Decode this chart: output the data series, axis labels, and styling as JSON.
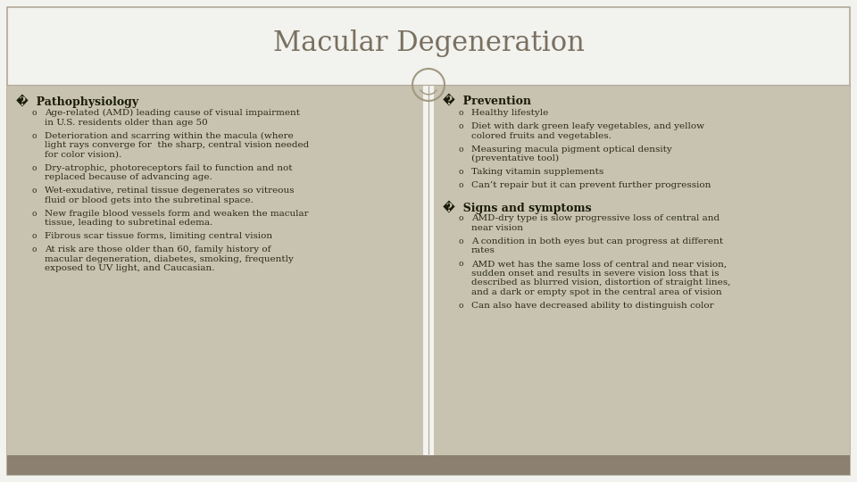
{
  "title": "Macular Degeneration",
  "title_color": "#7a7060",
  "title_fontsize": 22,
  "bg_color": "#f2f2ee",
  "content_bg": "#c8c3b0",
  "footer_color": "#8c8070",
  "border_color": "#b0a898",
  "left_heading": "�  Pathophysiology",
  "left_bullets": [
    [
      "Age-related (AMD) leading cause of visual impairment",
      "in U.S. residents older than age 50"
    ],
    [
      "Deterioration and scarring within the macula (where",
      "light rays converge for  the sharp, central vision needed",
      "for color vision)."
    ],
    [
      "Dry-atrophic, photoreceptors fail to function and not",
      "replaced because of advancing age."
    ],
    [
      "Wet-exudative, retinal tissue degenerates so vitreous",
      "fluid or blood gets into the subretinal space."
    ],
    [
      "New fragile blood vessels form and weaken the macular",
      "tissue, leading to subretinal edema."
    ],
    [
      "Fibrous scar tissue forms, limiting central vision"
    ],
    [
      "At risk are those older than 60, family history of",
      "macular degeneration, diabetes, smoking, frequently",
      "exposed to UV light, and Caucasian."
    ]
  ],
  "right_heading1": "�  Prevention",
  "right_bullets1": [
    [
      "Healthy lifestyle"
    ],
    [
      "Diet with dark green leafy vegetables, and yellow",
      "colored fruits and vegetables."
    ],
    [
      "Measuring macula pigment optical density",
      "(preventative tool)"
    ],
    [
      "Taking vitamin supplements"
    ],
    [
      "Can’t repair but it can prevent further progression"
    ]
  ],
  "right_heading2": "�  Signs and symptoms",
  "right_bullets2": [
    [
      "AMD-dry type is slow progressive loss of central and",
      "near vision"
    ],
    [
      "A condition in both eyes but can progress at different",
      "rates"
    ],
    [
      "AMD wet has the same loss of central and near vision,",
      "sudden onset and results in severe vision loss that is",
      "described as blurred vision, distortion of straight lines,",
      "and a dark or empty spot in the central area of vision"
    ],
    [
      "Can also have decreased ability to distinguish color"
    ]
  ],
  "heading_fontsize": 9,
  "bullet_fontsize": 7.5,
  "text_color": "#2a2a1a",
  "heading_color": "#1a1a0a",
  "circle_color": "#a09880"
}
